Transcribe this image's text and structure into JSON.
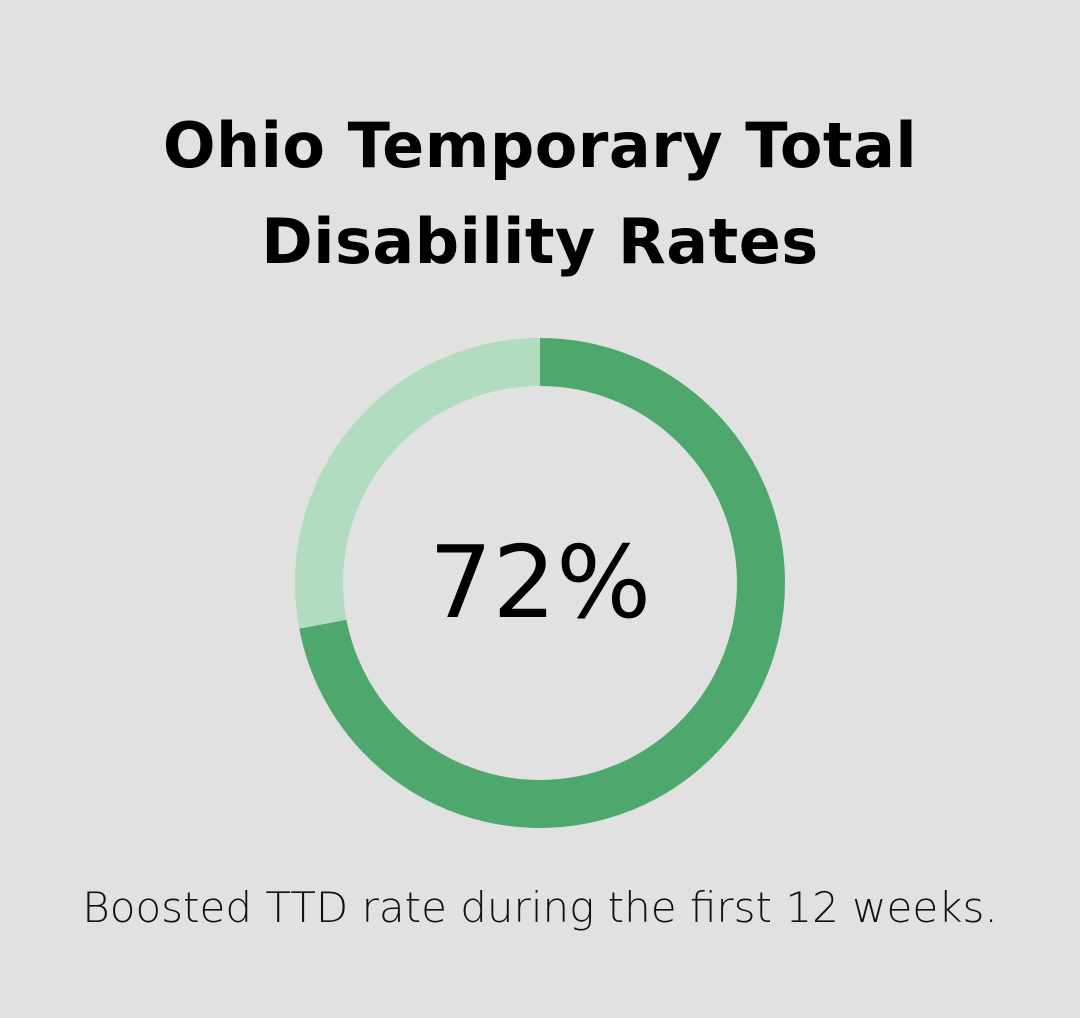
{
  "title": "Ohio Temporary Total Disability Rates",
  "caption": "Boosted TTD rate during the first 12 weeks.",
  "colors": {
    "background": "#e0e1e0",
    "filled": "#4ea76d",
    "remaining": "#b1dcc0"
  },
  "chart_data": {
    "type": "pie",
    "title": "Ohio Temporary Total Disability Rates",
    "center_label": "72%",
    "values": [
      72,
      28
    ],
    "series": [
      {
        "name": "",
        "values": [
          72,
          28
        ]
      }
    ]
  }
}
